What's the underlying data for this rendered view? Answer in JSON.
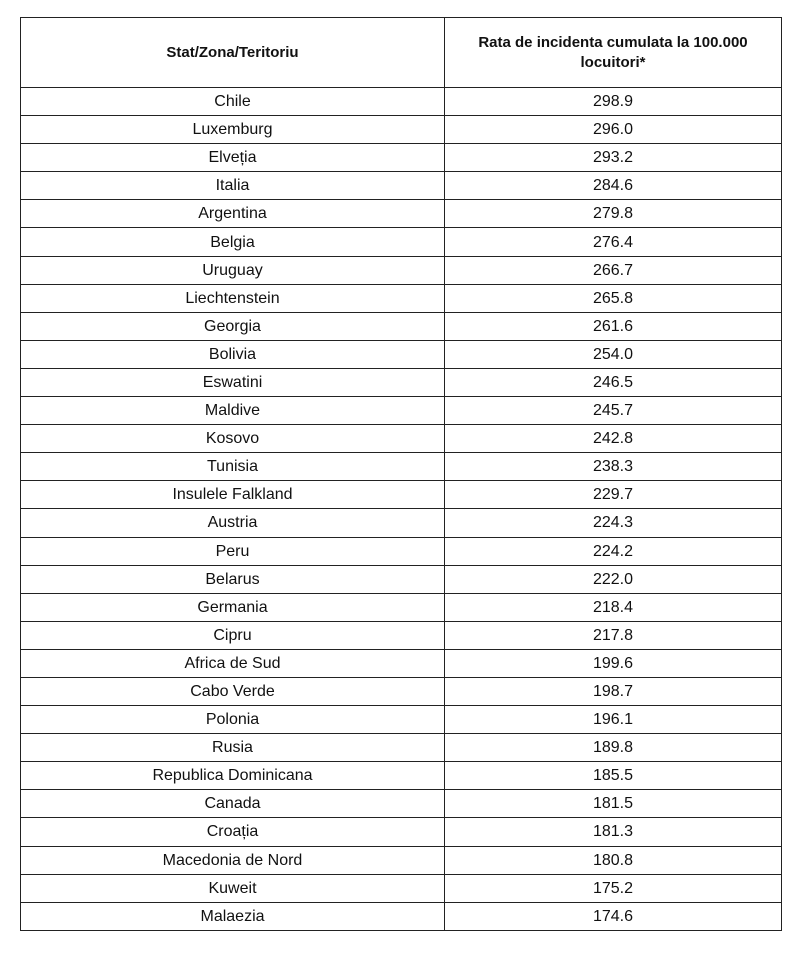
{
  "table": {
    "header": [
      "Stat/Zona/Teritoriu",
      "Rata de incidenta cumulata la 100.000 locuitori*"
    ],
    "rows": [
      [
        "Chile",
        "298.9"
      ],
      [
        "Luxemburg",
        "296.0"
      ],
      [
        "Elveția",
        "293.2"
      ],
      [
        "Italia",
        "284.6"
      ],
      [
        "Argentina",
        "279.8"
      ],
      [
        "Belgia",
        "276.4"
      ],
      [
        "Uruguay",
        "266.7"
      ],
      [
        "Liechtenstein",
        "265.8"
      ],
      [
        "Georgia",
        "261.6"
      ],
      [
        "Bolivia",
        "254.0"
      ],
      [
        "Eswatini",
        "246.5"
      ],
      [
        "Maldive",
        "245.7"
      ],
      [
        "Kosovo",
        "242.8"
      ],
      [
        "Tunisia",
        "238.3"
      ],
      [
        "Insulele Falkland",
        "229.7"
      ],
      [
        "Austria",
        "224.3"
      ],
      [
        "Peru",
        "224.2"
      ],
      [
        "Belarus",
        "222.0"
      ],
      [
        "Germania",
        "218.4"
      ],
      [
        "Cipru",
        "217.8"
      ],
      [
        "Africa de Sud",
        "199.6"
      ],
      [
        "Cabo Verde",
        "198.7"
      ],
      [
        "Polonia",
        "196.1"
      ],
      [
        "Rusia",
        "189.8"
      ],
      [
        "Republica Dominicana",
        "185.5"
      ],
      [
        "Canada",
        "181.5"
      ],
      [
        "Croația",
        "181.3"
      ],
      [
        "Macedonia de Nord",
        "180.8"
      ],
      [
        "Kuweit",
        "175.2"
      ],
      [
        "Malaezia",
        "174.6"
      ]
    ]
  }
}
